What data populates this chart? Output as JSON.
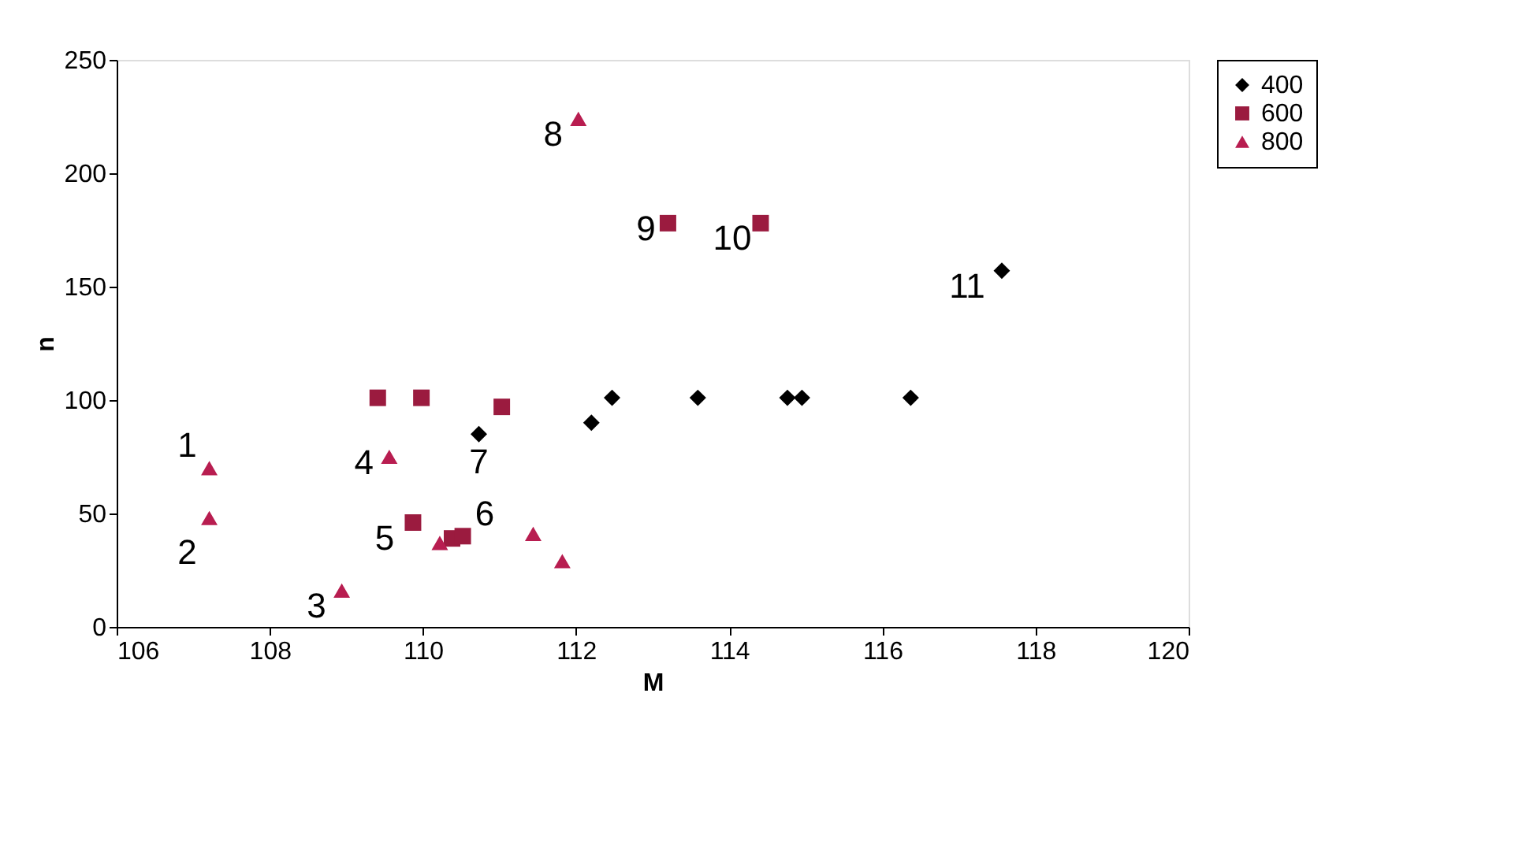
{
  "chart_data": {
    "type": "scatter",
    "xlabel": "M",
    "ylabel": "n",
    "xlim": [
      106,
      120
    ],
    "xticks": [
      106,
      108,
      110,
      112,
      114,
      116,
      118,
      120
    ],
    "ylim": [
      0,
      250
    ],
    "yticks": [
      0,
      50,
      100,
      150,
      200,
      250
    ],
    "grid": false,
    "legend": "right",
    "series": [
      {
        "name": "400",
        "color": "#000000",
        "marker": "diamond",
        "x": [
          110.73,
          112.2,
          112.47,
          113.59,
          114.76,
          114.95,
          116.37,
          117.56
        ],
        "values": [
          85,
          90,
          101,
          101,
          101,
          101,
          101,
          157
        ]
      },
      {
        "name": "600",
        "color": "#9b1b3f",
        "marker": "square",
        "x": [
          109.41,
          109.98,
          111.03,
          109.87,
          110.38,
          110.52,
          113.2,
          114.41
        ],
        "values": [
          101,
          101,
          97,
          46,
          39,
          40,
          178,
          178
        ]
      },
      {
        "name": "800",
        "color": "#b81d50",
        "marker": "triangle",
        "x": [
          107.21,
          107.21,
          108.94,
          109.56,
          110.22,
          111.44,
          111.82,
          112.03
        ],
        "values": [
          70,
          48,
          16,
          75,
          37,
          41,
          29,
          224
        ]
      }
    ],
    "annotations": [
      {
        "text": "1",
        "x": 107.21,
        "y": 70
      },
      {
        "text": "2",
        "x": 107.21,
        "y": 48
      },
      {
        "text": "3",
        "x": 108.94,
        "y": 16
      },
      {
        "text": "4",
        "x": 109.56,
        "y": 75
      },
      {
        "text": "5",
        "x": 109.87,
        "y": 46
      },
      {
        "text": "6",
        "x": 110.52,
        "y": 40
      },
      {
        "text": "7",
        "x": 110.73,
        "y": 85
      },
      {
        "text": "8",
        "x": 112.03,
        "y": 224
      },
      {
        "text": "9",
        "x": 113.2,
        "y": 178
      },
      {
        "text": "10",
        "x": 114.41,
        "y": 178
      },
      {
        "text": "11",
        "x": 117.56,
        "y": 157
      }
    ]
  }
}
